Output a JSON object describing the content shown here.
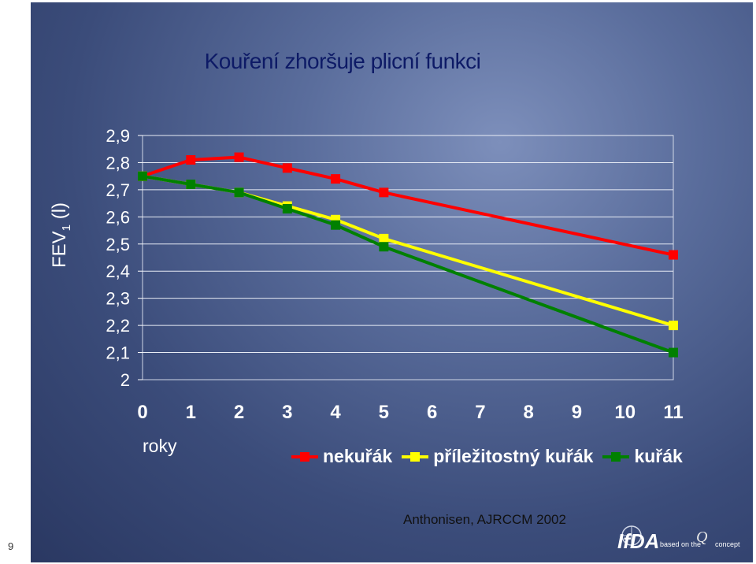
{
  "page_number": "9",
  "source": "Anthonisen, AJRCCM 2002",
  "logo_text": {
    "brand": "IfDA",
    "tagline": "based on the",
    "suffix": "concept"
  },
  "chart_data": {
    "type": "line",
    "title": "Kouření zhoršuje plicní funkci",
    "ylabel_main": "FEV",
    "ylabel_sub": "1",
    "ylabel_unit": " (l)",
    "xlabel": "roky",
    "ylim": [
      2,
      2.9
    ],
    "xlim": [
      0,
      11
    ],
    "yticks": [
      "2",
      "2,1",
      "2,2",
      "2,3",
      "2,4",
      "2,5",
      "2,6",
      "2,7",
      "2,8",
      "2,9"
    ],
    "xticks": [
      "0",
      "1",
      "2",
      "3",
      "4",
      "5",
      "6",
      "7",
      "8",
      "9",
      "10",
      "11"
    ],
    "grid": true,
    "legend_position": "bottom",
    "series": [
      {
        "name": "nekuřák",
        "color": "#ff0000",
        "x": [
          0,
          1,
          2,
          3,
          4,
          5,
          11
        ],
        "values": [
          2.75,
          2.81,
          2.82,
          2.78,
          2.74,
          2.69,
          2.46
        ]
      },
      {
        "name": "příležitostný kuřák",
        "color": "#ffff00",
        "x": [
          0,
          1,
          2,
          3,
          4,
          5,
          11
        ],
        "values": [
          2.75,
          2.72,
          2.69,
          2.64,
          2.59,
          2.52,
          2.2
        ]
      },
      {
        "name": "kuřák",
        "color": "#008000",
        "x": [
          0,
          1,
          2,
          3,
          4,
          5,
          11
        ],
        "values": [
          2.75,
          2.72,
          2.69,
          2.63,
          2.57,
          2.49,
          2.1
        ]
      }
    ]
  }
}
